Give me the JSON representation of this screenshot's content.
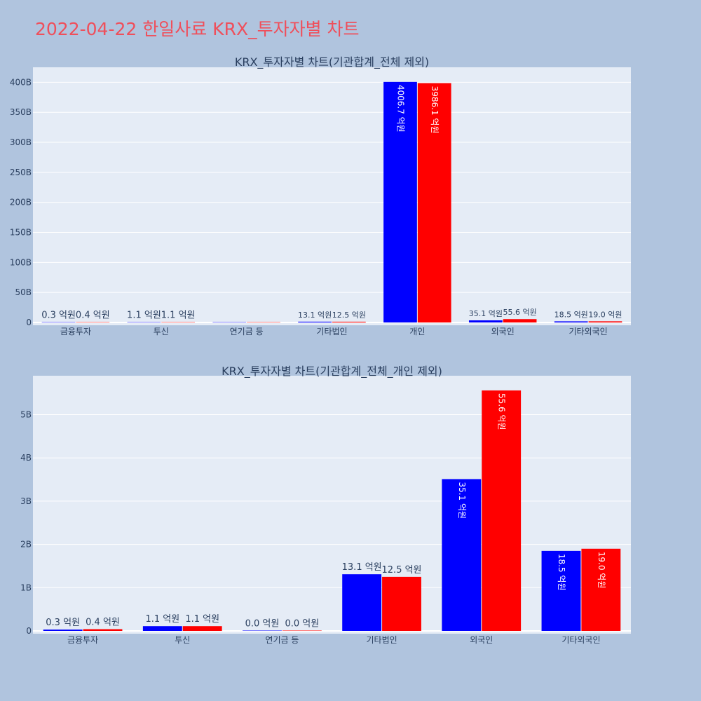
{
  "title": "2022-04-22 한일사료 KRX_투자자별 차트",
  "colors": {
    "page_bg": "#b0c4de",
    "plot_bg": "#e5ecf6",
    "grid": "#ffffff",
    "series_buy": "#0000ff",
    "series_sell": "#ff0000",
    "title": "#ef4f5b",
    "text": "#2a3f5f"
  },
  "chart_data": [
    {
      "type": "bar",
      "title": "KRX_투자자별 차트(기관합계_전체 제외)",
      "categories": [
        "금융투자",
        "투신",
        "연기금 등",
        "기타법인",
        "개인",
        "외국인",
        "기타외국인"
      ],
      "series": [
        {
          "values": [
            30000000,
            110000000,
            0,
            1310000000,
            400670000000,
            3510000000,
            1850000000
          ],
          "labels": [
            "0.3 억원",
            "1.1 억원",
            "",
            "13.1 억원",
            "4006.7 억원",
            "35.1 억원",
            "18.5 억원"
          ]
        },
        {
          "values": [
            40000000,
            110000000,
            0,
            1250000000,
            398610000000,
            5560000000,
            1900000000
          ],
          "labels": [
            "0.4 억원",
            "1.1 억원",
            "",
            "12.5 억원",
            "3986.1 억원",
            "55.6 억원",
            "19.0 억원"
          ]
        }
      ],
      "yticks": [
        0,
        50000000000,
        100000000000,
        150000000000,
        200000000000,
        250000000000,
        300000000000,
        350000000000,
        400000000000
      ],
      "ytick_labels": [
        "0",
        "50B",
        "100B",
        "150B",
        "200B",
        "250B",
        "300B",
        "350B",
        "400B"
      ],
      "ylim": [
        0,
        425000000000
      ],
      "grid": true,
      "legend": "none"
    },
    {
      "type": "bar",
      "title": "KRX_투자자별 차트(기관합계_전체_개인 제외)",
      "categories": [
        "금융투자",
        "투신",
        "연기금 등",
        "기타법인",
        "외국인",
        "기타외국인"
      ],
      "series": [
        {
          "values": [
            30000000,
            110000000,
            0,
            1310000000,
            3510000000,
            1850000000
          ],
          "labels": [
            "0.3 억원",
            "1.1 억원",
            "0.0 억원",
            "13.1 억원",
            "35.1 억원",
            "18.5 억원"
          ]
        },
        {
          "values": [
            40000000,
            110000000,
            0,
            1250000000,
            5560000000,
            1900000000
          ],
          "labels": [
            "0.4 억원",
            "1.1 억원",
            "0.0 억원",
            "12.5 억원",
            "55.6 억원",
            "19.0 억원"
          ]
        }
      ],
      "yticks": [
        0,
        1000000000,
        2000000000,
        3000000000,
        4000000000,
        5000000000
      ],
      "ytick_labels": [
        "0",
        "1B",
        "2B",
        "3B",
        "4B",
        "5B"
      ],
      "ylim": [
        0,
        5900000000
      ],
      "grid": true,
      "legend": "none"
    }
  ]
}
